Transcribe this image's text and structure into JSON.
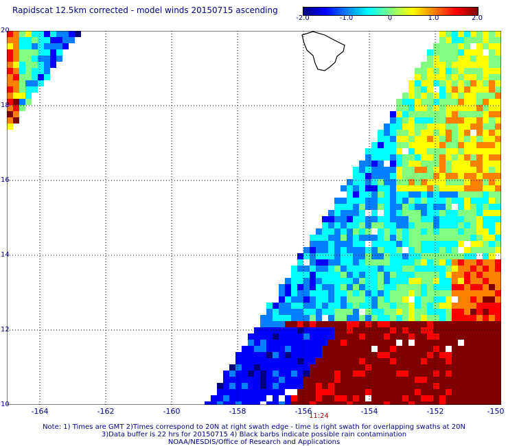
{
  "title": "Rapidscat 12.5km corrected - model winds 20150715 ascending",
  "colorbar": {
    "ticks": [
      "-2.0",
      "-1.0",
      "0",
      "1.0",
      "2.0"
    ],
    "tick_values": [
      -2.0,
      -1.0,
      0,
      1.0,
      2.0
    ],
    "range": [
      -2.0,
      2.0
    ],
    "colors": [
      "#00007f",
      "#0000ff",
      "#0080ff",
      "#00ffff",
      "#80ff80",
      "#ffff00",
      "#ff8000",
      "#ff0000",
      "#7f0000"
    ]
  },
  "map": {
    "lon_range": [
      -165,
      -150
    ],
    "lat_range": [
      10,
      20
    ],
    "x_ticks": [
      "-164",
      "-162",
      "-160",
      "-158",
      "-156",
      "-154",
      "-152",
      "-150"
    ],
    "x_tick_values": [
      -164,
      -162,
      -160,
      -158,
      -156,
      -154,
      -152,
      -150
    ],
    "y_ticks": [
      "10",
      "12",
      "14",
      "16",
      "18",
      "20"
    ],
    "y_tick_values": [
      10,
      12,
      14,
      16,
      18,
      20
    ],
    "grid": "dotted",
    "land_outline": "Big Island of Hawaii",
    "colors": {
      "land": "#000000",
      "grid": "#000000",
      "missing": "#ffffff"
    }
  },
  "swath_time": "11:24",
  "notes": [
    "Note: 1) Times are GMT 2)Times correspond to 20N at right swath edge - time is right swath for overlapping swaths at 20N",
    "3)Data buffer is 22 hrs for 20150715 4) Black barbs indicate possible rain contamination",
    "NOAA/NESDIS/Office of Research and Applications"
  ]
}
